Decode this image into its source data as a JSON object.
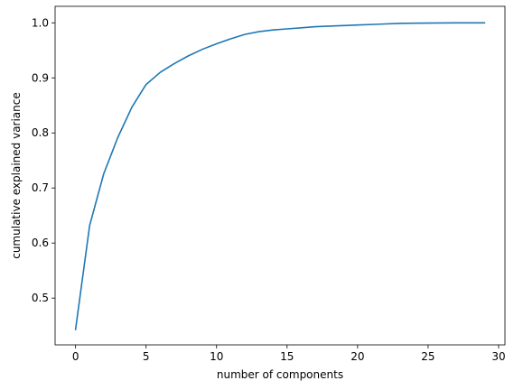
{
  "chart_data": {
    "type": "line",
    "title": "",
    "xlabel": "number of components",
    "ylabel": "cumulative explained variance",
    "xlim": [
      -1.45,
      30.45
    ],
    "ylim": [
      0.415,
      1.03
    ],
    "xticks": [
      0,
      5,
      10,
      15,
      20,
      25,
      30
    ],
    "xtick_labels": [
      "0",
      "5",
      "10",
      "15",
      "20",
      "25",
      "30"
    ],
    "yticks": [
      0.5,
      0.6,
      0.7,
      0.8,
      0.9,
      1.0
    ],
    "ytick_labels": [
      "0.5",
      "0.6",
      "0.7",
      "0.8",
      "0.9",
      "1.0"
    ],
    "grid": false,
    "legend": "none",
    "series": [
      {
        "color": "#1f77b4",
        "x": [
          0,
          1,
          2,
          3,
          4,
          5,
          6,
          7,
          8,
          9,
          10,
          11,
          12,
          13,
          14,
          15,
          16,
          17,
          18,
          19,
          20,
          21,
          22,
          23,
          24,
          25,
          26,
          27,
          28,
          29
        ],
        "y": [
          0.443,
          0.632,
          0.726,
          0.792,
          0.847,
          0.888,
          0.91,
          0.926,
          0.94,
          0.952,
          0.962,
          0.971,
          0.979,
          0.984,
          0.987,
          0.989,
          0.991,
          0.993,
          0.994,
          0.995,
          0.996,
          0.997,
          0.998,
          0.999,
          0.9993,
          0.9996,
          0.9998,
          0.9999,
          1.0,
          1.0
        ]
      }
    ]
  }
}
